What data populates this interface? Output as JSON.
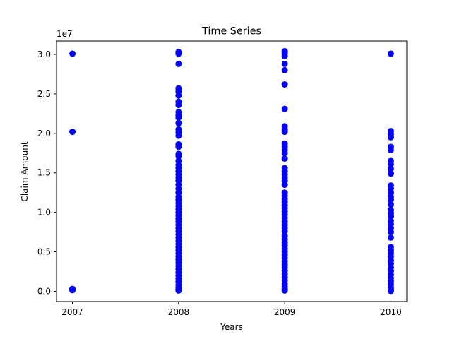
{
  "chart_data": {
    "type": "scatter",
    "title": "Time Series",
    "xlabel": "Years",
    "ylabel": "Claim Amount",
    "y_offset_text": "1e7",
    "y_scale_factor": 10000000,
    "xlim": [
      2006.85,
      2010.15
    ],
    "ylim": [
      -1300000,
      31700000
    ],
    "x_ticks": [
      2007,
      2008,
      2009,
      2010
    ],
    "x_tick_labels": [
      "2007",
      "2008",
      "2009",
      "2010"
    ],
    "y_ticks": [
      0,
      5000000,
      10000000,
      15000000,
      20000000,
      25000000,
      30000000
    ],
    "y_tick_labels": [
      "0.0",
      "0.5",
      "1.0",
      "1.5",
      "2.0",
      "2.5",
      "3.0"
    ],
    "grid": false,
    "marker_color": "#0000ff",
    "series": [
      {
        "points": [
          {
            "x": 2007,
            "y": 30100000
          },
          {
            "x": 2007,
            "y": 20200000
          },
          {
            "x": 2007,
            "y": 300000
          },
          {
            "x": 2007,
            "y": 200000
          },
          {
            "x": 2007,
            "y": 150000
          },
          {
            "x": 2008,
            "y": 30300000
          },
          {
            "x": 2008,
            "y": 30200000
          },
          {
            "x": 2008,
            "y": 30100000
          },
          {
            "x": 2008,
            "y": 28800000
          },
          {
            "x": 2008,
            "y": 25700000
          },
          {
            "x": 2008,
            "y": 25300000
          },
          {
            "x": 2008,
            "y": 24800000
          },
          {
            "x": 2008,
            "y": 24000000
          },
          {
            "x": 2008,
            "y": 23600000
          },
          {
            "x": 2008,
            "y": 22700000
          },
          {
            "x": 2008,
            "y": 22300000
          },
          {
            "x": 2008,
            "y": 22000000
          },
          {
            "x": 2008,
            "y": 21300000
          },
          {
            "x": 2008,
            "y": 20500000
          },
          {
            "x": 2008,
            "y": 20100000
          },
          {
            "x": 2008,
            "y": 19700000
          },
          {
            "x": 2008,
            "y": 18600000
          },
          {
            "x": 2008,
            "y": 18300000
          },
          {
            "x": 2008,
            "y": 17400000
          },
          {
            "x": 2008,
            "y": 17100000
          },
          {
            "x": 2008,
            "y": 16500000
          },
          {
            "x": 2008,
            "y": 16000000
          },
          {
            "x": 2008,
            "y": 15600000
          },
          {
            "x": 2008,
            "y": 15200000
          },
          {
            "x": 2008,
            "y": 14800000
          },
          {
            "x": 2008,
            "y": 14400000
          },
          {
            "x": 2008,
            "y": 14000000
          },
          {
            "x": 2008,
            "y": 13500000
          },
          {
            "x": 2008,
            "y": 13000000
          },
          {
            "x": 2008,
            "y": 12500000
          },
          {
            "x": 2008,
            "y": 12000000
          },
          {
            "x": 2008,
            "y": 11600000
          },
          {
            "x": 2008,
            "y": 11200000
          },
          {
            "x": 2008,
            "y": 10800000
          },
          {
            "x": 2008,
            "y": 10400000
          },
          {
            "x": 2008,
            "y": 10000000
          },
          {
            "x": 2008,
            "y": 9600000
          },
          {
            "x": 2008,
            "y": 9200000
          },
          {
            "x": 2008,
            "y": 8800000
          },
          {
            "x": 2008,
            "y": 8400000
          },
          {
            "x": 2008,
            "y": 8000000
          },
          {
            "x": 2008,
            "y": 7600000
          },
          {
            "x": 2008,
            "y": 7200000
          },
          {
            "x": 2008,
            "y": 6800000
          },
          {
            "x": 2008,
            "y": 6400000
          },
          {
            "x": 2008,
            "y": 6000000
          },
          {
            "x": 2008,
            "y": 5600000
          },
          {
            "x": 2008,
            "y": 5200000
          },
          {
            "x": 2008,
            "y": 4800000
          },
          {
            "x": 2008,
            "y": 4400000
          },
          {
            "x": 2008,
            "y": 4000000
          },
          {
            "x": 2008,
            "y": 3600000
          },
          {
            "x": 2008,
            "y": 3200000
          },
          {
            "x": 2008,
            "y": 2800000
          },
          {
            "x": 2008,
            "y": 2400000
          },
          {
            "x": 2008,
            "y": 2000000
          },
          {
            "x": 2008,
            "y": 1600000
          },
          {
            "x": 2008,
            "y": 1200000
          },
          {
            "x": 2008,
            "y": 800000
          },
          {
            "x": 2008,
            "y": 500000
          },
          {
            "x": 2008,
            "y": 250000
          },
          {
            "x": 2008,
            "y": 100000
          },
          {
            "x": 2009,
            "y": 30400000
          },
          {
            "x": 2009,
            "y": 30200000
          },
          {
            "x": 2009,
            "y": 29800000
          },
          {
            "x": 2009,
            "y": 28800000
          },
          {
            "x": 2009,
            "y": 28000000
          },
          {
            "x": 2009,
            "y": 26200000
          },
          {
            "x": 2009,
            "y": 23100000
          },
          {
            "x": 2009,
            "y": 20900000
          },
          {
            "x": 2009,
            "y": 20500000
          },
          {
            "x": 2009,
            "y": 20200000
          },
          {
            "x": 2009,
            "y": 18700000
          },
          {
            "x": 2009,
            "y": 18300000
          },
          {
            "x": 2009,
            "y": 17900000
          },
          {
            "x": 2009,
            "y": 17500000
          },
          {
            "x": 2009,
            "y": 16800000
          },
          {
            "x": 2009,
            "y": 15600000
          },
          {
            "x": 2009,
            "y": 15200000
          },
          {
            "x": 2009,
            "y": 14800000
          },
          {
            "x": 2009,
            "y": 14400000
          },
          {
            "x": 2009,
            "y": 14000000
          },
          {
            "x": 2009,
            "y": 13500000
          },
          {
            "x": 2009,
            "y": 12500000
          },
          {
            "x": 2009,
            "y": 12100000
          },
          {
            "x": 2009,
            "y": 11700000
          },
          {
            "x": 2009,
            "y": 11300000
          },
          {
            "x": 2009,
            "y": 10900000
          },
          {
            "x": 2009,
            "y": 10500000
          },
          {
            "x": 2009,
            "y": 10100000
          },
          {
            "x": 2009,
            "y": 9700000
          },
          {
            "x": 2009,
            "y": 9300000
          },
          {
            "x": 2009,
            "y": 8800000
          },
          {
            "x": 2009,
            "y": 8400000
          },
          {
            "x": 2009,
            "y": 8000000
          },
          {
            "x": 2009,
            "y": 7600000
          },
          {
            "x": 2009,
            "y": 7000000
          },
          {
            "x": 2009,
            "y": 6600000
          },
          {
            "x": 2009,
            "y": 6200000
          },
          {
            "x": 2009,
            "y": 5800000
          },
          {
            "x": 2009,
            "y": 5400000
          },
          {
            "x": 2009,
            "y": 5000000
          },
          {
            "x": 2009,
            "y": 4600000
          },
          {
            "x": 2009,
            "y": 4200000
          },
          {
            "x": 2009,
            "y": 3800000
          },
          {
            "x": 2009,
            "y": 3400000
          },
          {
            "x": 2009,
            "y": 3000000
          },
          {
            "x": 2009,
            "y": 2600000
          },
          {
            "x": 2009,
            "y": 2200000
          },
          {
            "x": 2009,
            "y": 1800000
          },
          {
            "x": 2009,
            "y": 1400000
          },
          {
            "x": 2009,
            "y": 1000000
          },
          {
            "x": 2009,
            "y": 600000
          },
          {
            "x": 2009,
            "y": 300000
          },
          {
            "x": 2009,
            "y": 100000
          },
          {
            "x": 2010,
            "y": 30100000
          },
          {
            "x": 2010,
            "y": 20300000
          },
          {
            "x": 2010,
            "y": 19900000
          },
          {
            "x": 2010,
            "y": 19500000
          },
          {
            "x": 2010,
            "y": 18300000
          },
          {
            "x": 2010,
            "y": 17900000
          },
          {
            "x": 2010,
            "y": 16500000
          },
          {
            "x": 2010,
            "y": 16100000
          },
          {
            "x": 2010,
            "y": 15500000
          },
          {
            "x": 2010,
            "y": 14900000
          },
          {
            "x": 2010,
            "y": 13400000
          },
          {
            "x": 2010,
            "y": 13000000
          },
          {
            "x": 2010,
            "y": 12500000
          },
          {
            "x": 2010,
            "y": 12000000
          },
          {
            "x": 2010,
            "y": 11600000
          },
          {
            "x": 2010,
            "y": 11000000
          },
          {
            "x": 2010,
            "y": 10300000
          },
          {
            "x": 2010,
            "y": 9900000
          },
          {
            "x": 2010,
            "y": 9500000
          },
          {
            "x": 2010,
            "y": 8900000
          },
          {
            "x": 2010,
            "y": 8500000
          },
          {
            "x": 2010,
            "y": 8000000
          },
          {
            "x": 2010,
            "y": 7500000
          },
          {
            "x": 2010,
            "y": 6800000
          },
          {
            "x": 2010,
            "y": 5600000
          },
          {
            "x": 2010,
            "y": 5200000
          },
          {
            "x": 2010,
            "y": 4800000
          },
          {
            "x": 2010,
            "y": 4400000
          },
          {
            "x": 2010,
            "y": 3900000
          },
          {
            "x": 2010,
            "y": 3500000
          },
          {
            "x": 2010,
            "y": 3000000
          },
          {
            "x": 2010,
            "y": 2600000
          },
          {
            "x": 2010,
            "y": 2100000
          },
          {
            "x": 2010,
            "y": 1700000
          },
          {
            "x": 2010,
            "y": 1300000
          },
          {
            "x": 2010,
            "y": 900000
          },
          {
            "x": 2010,
            "y": 500000
          },
          {
            "x": 2010,
            "y": 200000
          },
          {
            "x": 2010,
            "y": 50000
          }
        ]
      }
    ]
  }
}
